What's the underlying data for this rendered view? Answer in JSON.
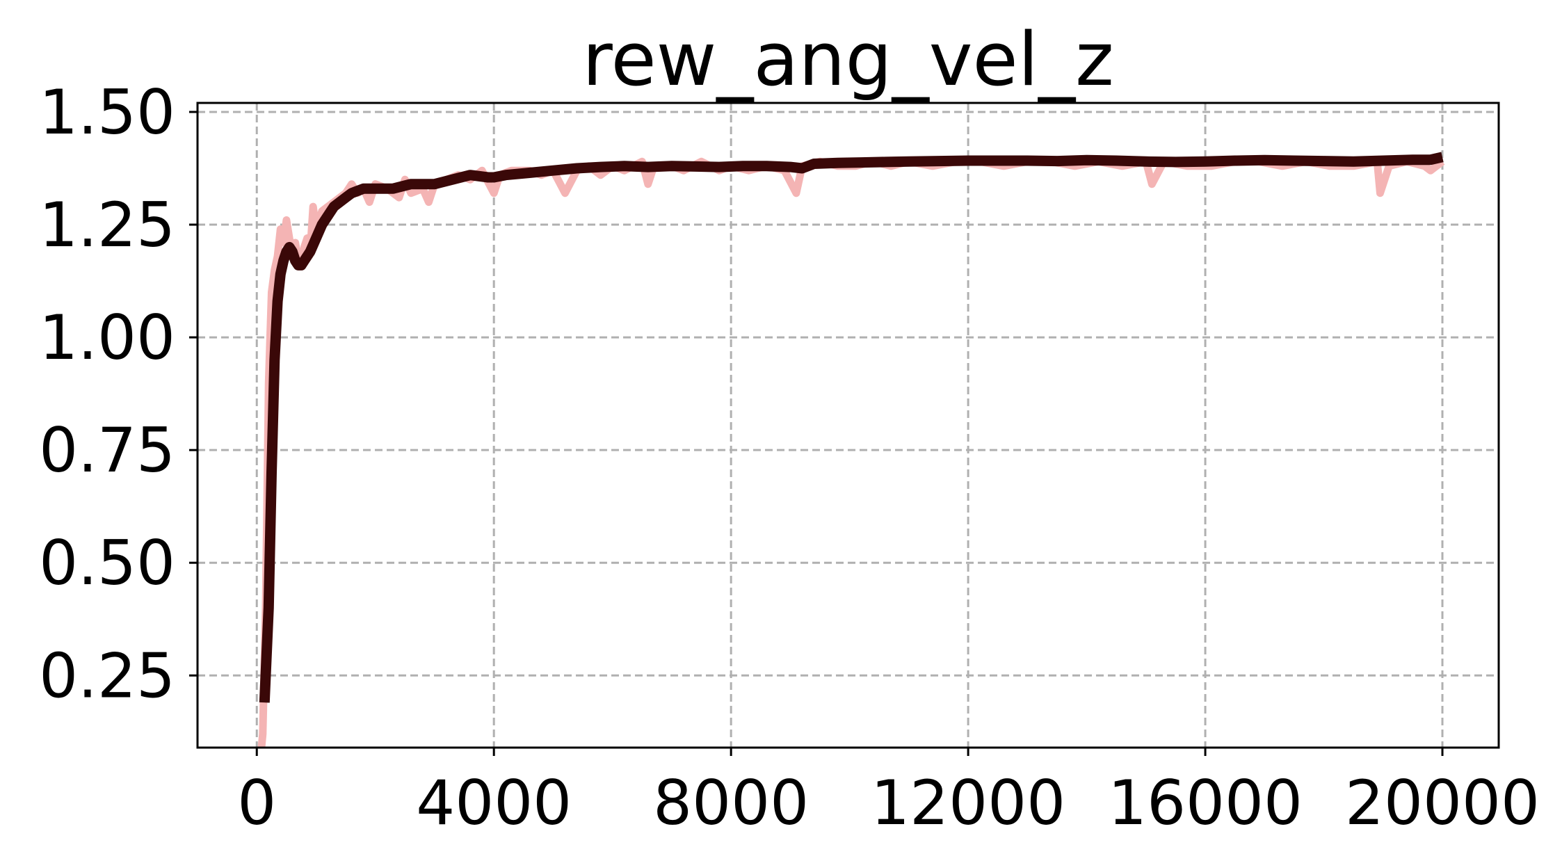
{
  "chart_data": {
    "type": "line",
    "title": "rew_ang_vel_z",
    "xlabel": "",
    "ylabel": "",
    "xlim": [
      -1000,
      20950
    ],
    "ylim": [
      0.09,
      1.52
    ],
    "x_ticks": [
      0,
      4000,
      8000,
      12000,
      16000,
      20000
    ],
    "y_ticks": [
      0.25,
      0.5,
      0.75,
      1.0,
      1.25,
      1.5
    ],
    "y_tick_labels": [
      "0.25",
      "0.50",
      "0.75",
      "1.00",
      "1.25",
      "1.50"
    ],
    "grid": true,
    "legend": "none",
    "series": [
      {
        "color": "#f4b4b4",
        "role": "raw",
        "points": [
          [
            50,
            0.05
          ],
          [
            100,
            0.12
          ],
          [
            150,
            0.4
          ],
          [
            200,
            0.9
          ],
          [
            250,
            1.1
          ],
          [
            300,
            1.15
          ],
          [
            350,
            1.18
          ],
          [
            400,
            1.24
          ],
          [
            450,
            1.21
          ],
          [
            500,
            1.26
          ],
          [
            550,
            1.22
          ],
          [
            600,
            1.18
          ],
          [
            650,
            1.21
          ],
          [
            700,
            1.17
          ],
          [
            750,
            1.16
          ],
          [
            800,
            1.2
          ],
          [
            850,
            1.22
          ],
          [
            900,
            1.19
          ],
          [
            950,
            1.29
          ],
          [
            1000,
            1.24
          ],
          [
            1100,
            1.28
          ],
          [
            1200,
            1.29
          ],
          [
            1300,
            1.3
          ],
          [
            1400,
            1.31
          ],
          [
            1500,
            1.32
          ],
          [
            1600,
            1.34
          ],
          [
            1700,
            1.32
          ],
          [
            1800,
            1.33
          ],
          [
            1900,
            1.3
          ],
          [
            2000,
            1.34
          ],
          [
            2200,
            1.33
          ],
          [
            2400,
            1.31
          ],
          [
            2500,
            1.35
          ],
          [
            2600,
            1.32
          ],
          [
            2800,
            1.33
          ],
          [
            2900,
            1.3
          ],
          [
            3000,
            1.34
          ],
          [
            3200,
            1.35
          ],
          [
            3400,
            1.36
          ],
          [
            3600,
            1.35
          ],
          [
            3800,
            1.37
          ],
          [
            4000,
            1.32
          ],
          [
            4100,
            1.36
          ],
          [
            4300,
            1.37
          ],
          [
            4600,
            1.37
          ],
          [
            4800,
            1.36
          ],
          [
            5000,
            1.37
          ],
          [
            5200,
            1.32
          ],
          [
            5400,
            1.37
          ],
          [
            5600,
            1.38
          ],
          [
            5800,
            1.36
          ],
          [
            6000,
            1.38
          ],
          [
            6200,
            1.37
          ],
          [
            6500,
            1.39
          ],
          [
            6600,
            1.34
          ],
          [
            6700,
            1.38
          ],
          [
            7000,
            1.38
          ],
          [
            7200,
            1.37
          ],
          [
            7500,
            1.39
          ],
          [
            7800,
            1.37
          ],
          [
            8000,
            1.38
          ],
          [
            8300,
            1.37
          ],
          [
            8600,
            1.38
          ],
          [
            8900,
            1.37
          ],
          [
            9100,
            1.32
          ],
          [
            9200,
            1.38
          ],
          [
            9500,
            1.39
          ],
          [
            9800,
            1.38
          ],
          [
            10100,
            1.38
          ],
          [
            10400,
            1.39
          ],
          [
            10700,
            1.38
          ],
          [
            11000,
            1.39
          ],
          [
            11400,
            1.38
          ],
          [
            11800,
            1.39
          ],
          [
            12200,
            1.39
          ],
          [
            12600,
            1.38
          ],
          [
            13000,
            1.39
          ],
          [
            13400,
            1.39
          ],
          [
            13800,
            1.38
          ],
          [
            14200,
            1.39
          ],
          [
            14600,
            1.38
          ],
          [
            15000,
            1.39
          ],
          [
            15100,
            1.34
          ],
          [
            15300,
            1.39
          ],
          [
            15700,
            1.38
          ],
          [
            16100,
            1.38
          ],
          [
            16500,
            1.39
          ],
          [
            16900,
            1.39
          ],
          [
            17300,
            1.38
          ],
          [
            17700,
            1.39
          ],
          [
            18100,
            1.38
          ],
          [
            18500,
            1.38
          ],
          [
            18900,
            1.39
          ],
          [
            18950,
            1.32
          ],
          [
            19100,
            1.38
          ],
          [
            19400,
            1.39
          ],
          [
            19700,
            1.38
          ],
          [
            19800,
            1.37
          ],
          [
            20000,
            1.39
          ]
        ]
      },
      {
        "color": "#3a0808",
        "role": "smoothed",
        "points": [
          [
            130,
            0.19
          ],
          [
            200,
            0.4
          ],
          [
            250,
            0.7
          ],
          [
            300,
            0.95
          ],
          [
            350,
            1.08
          ],
          [
            400,
            1.14
          ],
          [
            450,
            1.17
          ],
          [
            500,
            1.19
          ],
          [
            550,
            1.2
          ],
          [
            600,
            1.19
          ],
          [
            650,
            1.17
          ],
          [
            700,
            1.16
          ],
          [
            750,
            1.16
          ],
          [
            800,
            1.17
          ],
          [
            900,
            1.19
          ],
          [
            1000,
            1.22
          ],
          [
            1100,
            1.25
          ],
          [
            1200,
            1.27
          ],
          [
            1300,
            1.29
          ],
          [
            1400,
            1.3
          ],
          [
            1500,
            1.31
          ],
          [
            1600,
            1.32
          ],
          [
            1800,
            1.33
          ],
          [
            2000,
            1.33
          ],
          [
            2300,
            1.33
          ],
          [
            2600,
            1.34
          ],
          [
            3000,
            1.34
          ],
          [
            3300,
            1.35
          ],
          [
            3600,
            1.36
          ],
          [
            3900,
            1.355
          ],
          [
            4000,
            1.355
          ],
          [
            4200,
            1.36
          ],
          [
            4600,
            1.365
          ],
          [
            5000,
            1.37
          ],
          [
            5400,
            1.375
          ],
          [
            5800,
            1.378
          ],
          [
            6200,
            1.38
          ],
          [
            6600,
            1.378
          ],
          [
            7000,
            1.38
          ],
          [
            7400,
            1.379
          ],
          [
            7800,
            1.378
          ],
          [
            8200,
            1.38
          ],
          [
            8600,
            1.38
          ],
          [
            9000,
            1.378
          ],
          [
            9200,
            1.375
          ],
          [
            9400,
            1.385
          ],
          [
            9800,
            1.387
          ],
          [
            10200,
            1.388
          ],
          [
            10600,
            1.389
          ],
          [
            11000,
            1.39
          ],
          [
            11500,
            1.391
          ],
          [
            12000,
            1.392
          ],
          [
            12500,
            1.392
          ],
          [
            13000,
            1.392
          ],
          [
            13500,
            1.391
          ],
          [
            14000,
            1.393
          ],
          [
            14500,
            1.392
          ],
          [
            15000,
            1.39
          ],
          [
            15500,
            1.389
          ],
          [
            16000,
            1.39
          ],
          [
            16500,
            1.392
          ],
          [
            17000,
            1.393
          ],
          [
            17500,
            1.392
          ],
          [
            18000,
            1.391
          ],
          [
            18500,
            1.39
          ],
          [
            19000,
            1.392
          ],
          [
            19500,
            1.394
          ],
          [
            19800,
            1.394
          ],
          [
            20000,
            1.4
          ]
        ]
      }
    ]
  }
}
